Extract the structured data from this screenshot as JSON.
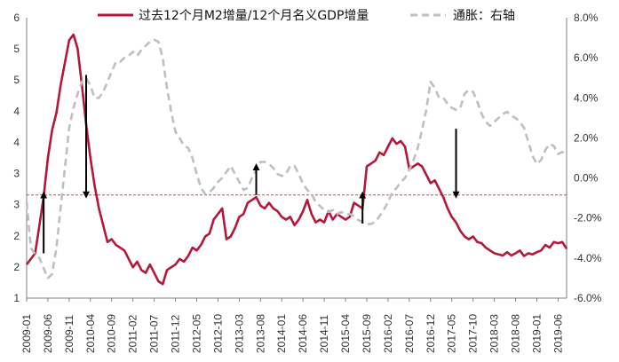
{
  "chart_data": {
    "type": "line",
    "title": "",
    "legend": {
      "placement": "top"
    },
    "grid": false,
    "x": {
      "label": "",
      "start": "2009-01",
      "end": "2019-08",
      "tick_labels": [
        "2009-01",
        "2009-06",
        "2009-11",
        "2010-04",
        "2010-09",
        "2011-02",
        "2011-07",
        "2011-12",
        "2012-05",
        "2012-10",
        "2013-03",
        "2013-08",
        "2014-01",
        "2014-06",
        "2014-11",
        "2015-04",
        "2015-09",
        "2016-02",
        "2016-07",
        "2016-12",
        "2017-05",
        "2017-10",
        "2018-03",
        "2018-08",
        "2019-01",
        "2019-06"
      ]
    },
    "y_left": {
      "min": 1,
      "max": 6,
      "tick_labels": [
        "1",
        "2",
        "2",
        "3",
        "3",
        "4",
        "4",
        "5",
        "5",
        "6"
      ]
    },
    "y_right": {
      "min": -6.0,
      "max": 8.0,
      "tick_labels": [
        "-6.0%",
        "-4.0%",
        "-2.0%",
        "0.0%",
        "2.0%",
        "4.0%",
        "6.0%",
        "8.0%"
      ]
    },
    "reference_line": {
      "axis": "left",
      "value": 2.84,
      "color": "#d04a3a",
      "style": "dashed"
    },
    "series": [
      {
        "name": "过去12个月M2增量/12个月名义GDP增量",
        "axis": "left",
        "color": "#b5173a",
        "style": "solid",
        "points": [
          [
            "2009-01",
            1.6
          ],
          [
            "2009-03",
            1.8
          ],
          [
            "2009-04",
            2.3
          ],
          [
            "2009-05",
            2.8
          ],
          [
            "2009-06",
            3.5
          ],
          [
            "2009-07",
            4.0
          ],
          [
            "2009-08",
            4.3
          ],
          [
            "2009-09",
            4.8
          ],
          [
            "2009-10",
            5.2
          ],
          [
            "2009-11",
            5.6
          ],
          [
            "2009-12",
            5.7
          ],
          [
            "2010-01",
            5.45
          ],
          [
            "2010-02",
            4.8
          ],
          [
            "2010-03",
            4.1
          ],
          [
            "2010-04",
            3.5
          ],
          [
            "2010-05",
            3.0
          ],
          [
            "2010-06",
            2.6
          ],
          [
            "2010-07",
            2.3
          ],
          [
            "2010-08",
            2.0
          ],
          [
            "2010-09",
            2.05
          ],
          [
            "2010-10",
            1.95
          ],
          [
            "2010-11",
            1.9
          ],
          [
            "2010-12",
            1.85
          ],
          [
            "2011-01",
            1.7
          ],
          [
            "2011-02",
            1.55
          ],
          [
            "2011-03",
            1.65
          ],
          [
            "2011-04",
            1.5
          ],
          [
            "2011-05",
            1.45
          ],
          [
            "2011-06",
            1.6
          ],
          [
            "2011-07",
            1.45
          ],
          [
            "2011-08",
            1.3
          ],
          [
            "2011-09",
            1.25
          ],
          [
            "2011-10",
            1.5
          ],
          [
            "2011-11",
            1.55
          ],
          [
            "2011-12",
            1.6
          ],
          [
            "2012-01",
            1.7
          ],
          [
            "2012-02",
            1.65
          ],
          [
            "2012-03",
            1.75
          ],
          [
            "2012-04",
            1.9
          ],
          [
            "2012-05",
            1.85
          ],
          [
            "2012-06",
            1.95
          ],
          [
            "2012-07",
            2.1
          ],
          [
            "2012-08",
            2.15
          ],
          [
            "2012-09",
            2.4
          ],
          [
            "2012-10",
            2.5
          ],
          [
            "2012-11",
            2.6
          ],
          [
            "2012-12",
            2.05
          ],
          [
            "2013-01",
            2.1
          ],
          [
            "2013-02",
            2.25
          ],
          [
            "2013-03",
            2.45
          ],
          [
            "2013-04",
            2.5
          ],
          [
            "2013-05",
            2.7
          ],
          [
            "2013-06",
            2.75
          ],
          [
            "2013-07",
            2.8
          ],
          [
            "2013-08",
            2.65
          ],
          [
            "2013-09",
            2.6
          ],
          [
            "2013-10",
            2.7
          ],
          [
            "2013-11",
            2.6
          ],
          [
            "2013-12",
            2.55
          ],
          [
            "2014-01",
            2.45
          ],
          [
            "2014-02",
            2.4
          ],
          [
            "2014-03",
            2.45
          ],
          [
            "2014-04",
            2.3
          ],
          [
            "2014-05",
            2.4
          ],
          [
            "2014-06",
            2.55
          ],
          [
            "2014-07",
            2.75
          ],
          [
            "2014-08",
            2.5
          ],
          [
            "2014-09",
            2.35
          ],
          [
            "2014-10",
            2.4
          ],
          [
            "2014-11",
            2.35
          ],
          [
            "2014-12",
            2.55
          ],
          [
            "2015-01",
            2.4
          ],
          [
            "2015-02",
            2.5
          ],
          [
            "2015-03",
            2.45
          ],
          [
            "2015-04",
            2.4
          ],
          [
            "2015-05",
            2.45
          ],
          [
            "2015-06",
            2.7
          ],
          [
            "2015-07",
            2.65
          ],
          [
            "2015-08",
            2.6
          ],
          [
            "2015-09",
            3.35
          ],
          [
            "2015-10",
            3.4
          ],
          [
            "2015-11",
            3.45
          ],
          [
            "2015-12",
            3.6
          ],
          [
            "2016-01",
            3.55
          ],
          [
            "2016-02",
            3.7
          ],
          [
            "2016-03",
            3.85
          ],
          [
            "2016-04",
            3.75
          ],
          [
            "2016-05",
            3.8
          ],
          [
            "2016-06",
            3.7
          ],
          [
            "2016-07",
            3.3
          ],
          [
            "2016-08",
            3.35
          ],
          [
            "2016-09",
            3.4
          ],
          [
            "2016-10",
            3.35
          ],
          [
            "2016-11",
            3.2
          ],
          [
            "2016-12",
            3.05
          ],
          [
            "2017-01",
            3.1
          ],
          [
            "2017-02",
            2.95
          ],
          [
            "2017-03",
            2.8
          ],
          [
            "2017-04",
            2.6
          ],
          [
            "2017-05",
            2.45
          ],
          [
            "2017-06",
            2.35
          ],
          [
            "2017-07",
            2.2
          ],
          [
            "2017-08",
            2.1
          ],
          [
            "2017-09",
            2.05
          ],
          [
            "2017-10",
            2.1
          ],
          [
            "2017-11",
            2.0
          ],
          [
            "2017-12",
            1.98
          ],
          [
            "2018-01",
            1.9
          ],
          [
            "2018-02",
            1.85
          ],
          [
            "2018-03",
            1.8
          ],
          [
            "2018-04",
            1.78
          ],
          [
            "2018-05",
            1.76
          ],
          [
            "2018-06",
            1.82
          ],
          [
            "2018-07",
            1.76
          ],
          [
            "2018-08",
            1.8
          ],
          [
            "2018-09",
            1.85
          ],
          [
            "2018-10",
            1.75
          ],
          [
            "2018-11",
            1.8
          ],
          [
            "2018-12",
            1.78
          ],
          [
            "2019-01",
            1.82
          ],
          [
            "2019-02",
            1.85
          ],
          [
            "2019-03",
            1.95
          ],
          [
            "2019-04",
            1.9
          ],
          [
            "2019-05",
            2.0
          ],
          [
            "2019-06",
            1.98
          ],
          [
            "2019-07",
            2.0
          ],
          [
            "2019-08",
            1.88
          ]
        ]
      },
      {
        "name": "通胀：右轴",
        "axis": "right",
        "color": "#bfbfbf",
        "style": "dashed",
        "points": [
          [
            "2009-01",
            -1.2
          ],
          [
            "2009-02",
            -3.5
          ],
          [
            "2009-03",
            -3.8
          ],
          [
            "2009-04",
            -4.0
          ],
          [
            "2009-05",
            -4.5
          ],
          [
            "2009-06",
            -5.0
          ],
          [
            "2009-07",
            -4.8
          ],
          [
            "2009-08",
            -3.5
          ],
          [
            "2009-09",
            -1.5
          ],
          [
            "2009-10",
            0.5
          ],
          [
            "2009-11",
            2.5
          ],
          [
            "2009-12",
            3.5
          ],
          [
            "2010-01",
            4.2
          ],
          [
            "2010-02",
            4.8
          ],
          [
            "2010-03",
            5.0
          ],
          [
            "2010-04",
            4.6
          ],
          [
            "2010-05",
            4.0
          ],
          [
            "2010-06",
            4.0
          ],
          [
            "2010-07",
            4.3
          ],
          [
            "2010-08",
            4.8
          ],
          [
            "2010-09",
            5.3
          ],
          [
            "2010-10",
            5.8
          ],
          [
            "2010-11",
            5.8
          ],
          [
            "2010-12",
            6.0
          ],
          [
            "2011-01",
            6.1
          ],
          [
            "2011-02",
            6.3
          ],
          [
            "2011-03",
            6.1
          ],
          [
            "2011-04",
            6.4
          ],
          [
            "2011-05",
            6.6
          ],
          [
            "2011-06",
            6.8
          ],
          [
            "2011-07",
            6.9
          ],
          [
            "2011-08",
            6.8
          ],
          [
            "2011-09",
            6.0
          ],
          [
            "2011-10",
            4.5
          ],
          [
            "2011-11",
            3.3
          ],
          [
            "2011-12",
            2.3
          ],
          [
            "2012-01",
            2.0
          ],
          [
            "2012-02",
            1.6
          ],
          [
            "2012-03",
            1.5
          ],
          [
            "2012-04",
            1.0
          ],
          [
            "2012-05",
            0.2
          ],
          [
            "2012-06",
            -0.5
          ],
          [
            "2012-07",
            -0.8
          ],
          [
            "2012-08",
            -0.7
          ],
          [
            "2012-09",
            -0.5
          ],
          [
            "2012-10",
            -0.2
          ],
          [
            "2012-11",
            0.0
          ],
          [
            "2012-12",
            0.3
          ],
          [
            "2013-01",
            0.6
          ],
          [
            "2013-02",
            0.2
          ],
          [
            "2013-03",
            -0.2
          ],
          [
            "2013-04",
            -0.6
          ],
          [
            "2013-05",
            -0.5
          ],
          [
            "2013-06",
            0.0
          ],
          [
            "2013-07",
            0.4
          ],
          [
            "2013-08",
            0.8
          ],
          [
            "2013-09",
            0.8
          ],
          [
            "2013-10",
            0.7
          ],
          [
            "2013-11",
            0.5
          ],
          [
            "2013-12",
            0.2
          ],
          [
            "2014-01",
            0.1
          ],
          [
            "2014-02",
            0.2
          ],
          [
            "2014-03",
            0.6
          ],
          [
            "2014-04",
            0.6
          ],
          [
            "2014-05",
            0.2
          ],
          [
            "2014-06",
            -0.3
          ],
          [
            "2014-07",
            -0.6
          ],
          [
            "2014-08",
            -0.8
          ],
          [
            "2014-09",
            -1.2
          ],
          [
            "2014-10",
            -1.4
          ],
          [
            "2014-11",
            -1.6
          ],
          [
            "2014-12",
            -1.7
          ],
          [
            "2015-01",
            -1.6
          ],
          [
            "2015-02",
            -1.8
          ],
          [
            "2015-03",
            -1.7
          ],
          [
            "2015-04",
            -1.8
          ],
          [
            "2015-05",
            -1.8
          ],
          [
            "2015-06",
            -1.9
          ],
          [
            "2015-07",
            -2.1
          ],
          [
            "2015-08",
            -2.2
          ],
          [
            "2015-09",
            -2.3
          ],
          [
            "2015-10",
            -2.3
          ],
          [
            "2015-11",
            -2.2
          ],
          [
            "2015-12",
            -1.9
          ],
          [
            "2016-01",
            -1.6
          ],
          [
            "2016-02",
            -1.2
          ],
          [
            "2016-03",
            -0.7
          ],
          [
            "2016-04",
            -0.5
          ],
          [
            "2016-05",
            -0.2
          ],
          [
            "2016-06",
            0.0
          ],
          [
            "2016-07",
            0.4
          ],
          [
            "2016-08",
            0.9
          ],
          [
            "2016-09",
            1.5
          ],
          [
            "2016-10",
            2.4
          ],
          [
            "2016-11",
            3.4
          ],
          [
            "2016-12",
            4.8
          ],
          [
            "2017-01",
            4.5
          ],
          [
            "2017-02",
            4.0
          ],
          [
            "2017-03",
            4.0
          ],
          [
            "2017-04",
            3.7
          ],
          [
            "2017-05",
            3.5
          ],
          [
            "2017-06",
            3.4
          ],
          [
            "2017-07",
            3.5
          ],
          [
            "2017-08",
            4.2
          ],
          [
            "2017-09",
            4.4
          ],
          [
            "2017-10",
            4.3
          ],
          [
            "2017-11",
            3.8
          ],
          [
            "2017-12",
            3.2
          ],
          [
            "2018-01",
            2.8
          ],
          [
            "2018-02",
            2.6
          ],
          [
            "2018-03",
            2.8
          ],
          [
            "2018-04",
            3.0
          ],
          [
            "2018-05",
            3.2
          ],
          [
            "2018-06",
            3.3
          ],
          [
            "2018-07",
            3.1
          ],
          [
            "2018-08",
            3.0
          ],
          [
            "2018-09",
            2.8
          ],
          [
            "2018-10",
            2.5
          ],
          [
            "2018-11",
            1.8
          ],
          [
            "2018-12",
            1.1
          ],
          [
            "2019-01",
            0.7
          ],
          [
            "2019-02",
            0.9
          ],
          [
            "2019-03",
            1.4
          ],
          [
            "2019-04",
            1.7
          ],
          [
            "2019-05",
            1.6
          ],
          [
            "2019-06",
            1.2
          ],
          [
            "2019-07",
            1.3
          ],
          [
            "2019-08",
            1.1
          ]
        ]
      }
    ],
    "annotations": [
      {
        "type": "arrow",
        "direction": "up",
        "x": "2009-05",
        "y_from": 1.8,
        "y_to": 2.84
      },
      {
        "type": "arrow",
        "direction": "down",
        "x": "2010-03",
        "y_from": 4.98,
        "y_to": 2.84
      },
      {
        "type": "arrow",
        "direction": "up",
        "x": "2013-07",
        "y_from": 2.84,
        "y_to": 3.34
      },
      {
        "type": "arrow",
        "direction": "up",
        "x": "2015-08",
        "y_from": 2.33,
        "y_to": 2.84
      },
      {
        "type": "arrow",
        "direction": "down",
        "x": "2017-06",
        "y_from": 4.02,
        "y_to": 2.84
      }
    ]
  }
}
